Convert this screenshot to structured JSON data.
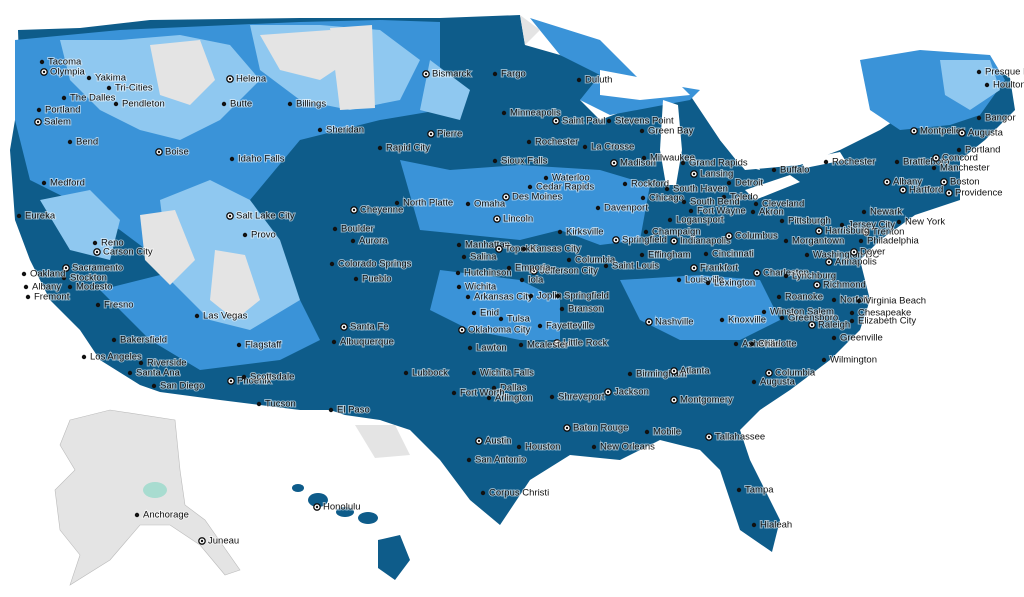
{
  "cities": [
    {
      "name": "Tacoma",
      "capital": false
    },
    {
      "name": "Olympia",
      "capital": true
    },
    {
      "name": "Yakima",
      "capital": false
    },
    {
      "name": "Tri-Cities",
      "capital": false
    },
    {
      "name": "Helena",
      "capital": true
    },
    {
      "name": "Presque Isle",
      "capital": false
    },
    {
      "name": "Houlton",
      "capital": false
    },
    {
      "name": "Bismarck",
      "capital": true
    },
    {
      "name": "Fargo",
      "capital": false
    },
    {
      "name": "Duluth",
      "capital": false
    },
    {
      "name": "The Dalles",
      "capital": false
    },
    {
      "name": "Pendleton",
      "capital": false
    },
    {
      "name": "Portland",
      "capital": false
    },
    {
      "name": "Salem",
      "capital": true
    },
    {
      "name": "Butte",
      "capital": false
    },
    {
      "name": "Billings",
      "capital": false
    },
    {
      "name": "Bangor",
      "capital": false
    },
    {
      "name": "Minneapolis",
      "capital": false
    },
    {
      "name": "Saint Paul",
      "capital": true
    },
    {
      "name": "Stevens Point",
      "capital": false
    },
    {
      "name": "Green Bay",
      "capital": false
    },
    {
      "name": "Sheridan",
      "capital": false
    },
    {
      "name": "Pierre",
      "capital": true
    },
    {
      "name": "Montpelier",
      "capital": true
    },
    {
      "name": "Augusta",
      "capital": true
    },
    {
      "name": "Rochester",
      "capital": false
    },
    {
      "name": "La Crosse",
      "capital": false
    },
    {
      "name": "Bend",
      "capital": false
    },
    {
      "name": "Rapid City",
      "capital": false
    },
    {
      "name": "Portland",
      "capital": false
    },
    {
      "name": "Boise",
      "capital": true
    },
    {
      "name": "Idaho Falls",
      "capital": false
    },
    {
      "name": "Sioux Falls",
      "capital": false
    },
    {
      "name": "Madison",
      "capital": true
    },
    {
      "name": "Milwaukee",
      "capital": false
    },
    {
      "name": "Grand Rapids",
      "capital": false
    },
    {
      "name": "Lansing",
      "capital": true
    },
    {
      "name": "Buffalo",
      "capital": false
    },
    {
      "name": "Rochester",
      "capital": false
    },
    {
      "name": "Brattleboro",
      "capital": false
    },
    {
      "name": "Concord",
      "capital": true
    },
    {
      "name": "Manchester",
      "capital": false
    },
    {
      "name": "Waterloo",
      "capital": false
    },
    {
      "name": "Rockford",
      "capital": false
    },
    {
      "name": "Detroit",
      "capital": false
    },
    {
      "name": "Medford",
      "capital": false
    },
    {
      "name": "Albany",
      "capital": true
    },
    {
      "name": "Boston",
      "capital": true
    },
    {
      "name": "Cedar Rapids",
      "capital": false
    },
    {
      "name": "South Haven",
      "capital": false
    },
    {
      "name": "Toledo",
      "capital": false
    },
    {
      "name": "Hartford",
      "capital": true
    },
    {
      "name": "Providence",
      "capital": true
    },
    {
      "name": "Des Moines",
      "capital": true
    },
    {
      "name": "Chicago",
      "capital": false
    },
    {
      "name": "Cheyenne",
      "capital": true
    },
    {
      "name": "North Platte",
      "capital": false
    },
    {
      "name": "Omaha",
      "capital": false
    },
    {
      "name": "Davenport",
      "capital": false
    },
    {
      "name": "South Bend",
      "capital": false
    },
    {
      "name": "Fort Wayne",
      "capital": false
    },
    {
      "name": "Cleveland",
      "capital": false
    },
    {
      "name": "Akron",
      "capital": false
    },
    {
      "name": "Newark",
      "capital": false
    },
    {
      "name": "New York",
      "capital": false
    },
    {
      "name": "Trenton",
      "capital": true
    },
    {
      "name": "Philadelphia",
      "capital": false
    },
    {
      "name": "Eureka",
      "capital": false
    },
    {
      "name": "Salt Lake City",
      "capital": true
    },
    {
      "name": "Lincoln",
      "capital": true
    },
    {
      "name": "Logansport",
      "capital": false
    },
    {
      "name": "Pittsburgh",
      "capital": false
    },
    {
      "name": "Jersey City",
      "capital": false
    },
    {
      "name": "Harrisburg",
      "capital": true
    },
    {
      "name": "Provo",
      "capital": false
    },
    {
      "name": "Boulder",
      "capital": false
    },
    {
      "name": "Aurora",
      "capital": false
    },
    {
      "name": "Manhattan",
      "capital": false
    },
    {
      "name": "Topeka",
      "capital": true
    },
    {
      "name": "Kansas City",
      "capital": false
    },
    {
      "name": "Kirksville",
      "capital": false
    },
    {
      "name": "Springfield",
      "capital": true
    },
    {
      "name": "Champaign",
      "capital": false
    },
    {
      "name": "Indianapolis",
      "capital": true
    },
    {
      "name": "Columbus",
      "capital": true
    },
    {
      "name": "Morgantown",
      "capital": false
    },
    {
      "name": "Reno",
      "capital": false
    },
    {
      "name": "Carson City",
      "capital": true
    },
    {
      "name": "Sacramento",
      "capital": true
    },
    {
      "name": "Stockton",
      "capital": false
    },
    {
      "name": "Oakland",
      "capital": false
    },
    {
      "name": "Modesto",
      "capital": false
    },
    {
      "name": "Albany",
      "capital": false
    },
    {
      "name": "Fremont",
      "capital": false
    },
    {
      "name": "Salina",
      "capital": false
    },
    {
      "name": "Columbia",
      "capital": false
    },
    {
      "name": "Jefferson City",
      "capital": true
    },
    {
      "name": "Saint Louis",
      "capital": false
    },
    {
      "name": "Effingham",
      "capital": false
    },
    {
      "name": "Frankfort",
      "capital": true
    },
    {
      "name": "Cincinnati",
      "capital": false
    },
    {
      "name": "Charleston",
      "capital": true
    },
    {
      "name": "Washington DC",
      "capital": false
    },
    {
      "name": "Annapolis",
      "capital": true
    },
    {
      "name": "Dover",
      "capital": true
    },
    {
      "name": "Colorado Springs",
      "capital": false
    },
    {
      "name": "Pueblo",
      "capital": false
    },
    {
      "name": "Hutchinson",
      "capital": false
    },
    {
      "name": "Emporia",
      "capital": false
    },
    {
      "name": "Iola",
      "capital": false
    },
    {
      "name": "Wichita",
      "capital": false
    },
    {
      "name": "Louisville",
      "capital": false
    },
    {
      "name": "Lexington",
      "capital": false
    },
    {
      "name": "Lynchburg",
      "capital": false
    },
    {
      "name": "Richmond",
      "capital": true
    },
    {
      "name": "Fresno",
      "capital": false
    },
    {
      "name": "Arkansas City",
      "capital": false
    },
    {
      "name": "Joplin",
      "capital": false
    },
    {
      "name": "Springfield",
      "capital": false
    },
    {
      "name": "Branson",
      "capital": false
    },
    {
      "name": "Norfolk",
      "capital": false
    },
    {
      "name": "Virginia Beach",
      "capital": false
    },
    {
      "name": "Chesapeake",
      "capital": false
    },
    {
      "name": "Roanoke",
      "capital": false
    },
    {
      "name": "Las Vegas",
      "capital": false
    },
    {
      "name": "Enid",
      "capital": false
    },
    {
      "name": "Tulsa",
      "capital": false
    },
    {
      "name": "Fayetteville",
      "capital": false
    },
    {
      "name": "Nashville",
      "capital": true
    },
    {
      "name": "Knoxville",
      "capital": false
    },
    {
      "name": "Winston Salem",
      "capital": false
    },
    {
      "name": "Greensboro",
      "capital": false
    },
    {
      "name": "Raleigh",
      "capital": true
    },
    {
      "name": "Elizabeth City",
      "capital": false
    },
    {
      "name": "Santa Fe",
      "capital": true
    },
    {
      "name": "Oklahoma City",
      "capital": true
    },
    {
      "name": "Bakersfield",
      "capital": false
    },
    {
      "name": "Albuquerque",
      "capital": false
    },
    {
      "name": "Lawton",
      "capital": false
    },
    {
      "name": "Little Rock",
      "capital": true
    },
    {
      "name": "Asheville",
      "capital": false
    },
    {
      "name": "Charlotte",
      "capital": false
    },
    {
      "name": "Greenville",
      "capital": false
    },
    {
      "name": "Flagstaff",
      "capital": false
    },
    {
      "name": "Los Angeles",
      "capital": false
    },
    {
      "name": "Riverside",
      "capital": false
    },
    {
      "name": "Santa Ana",
      "capital": false
    },
    {
      "name": "Phoenix",
      "capital": true
    },
    {
      "name": "Scottsdale",
      "capital": false
    },
    {
      "name": "Mcalester",
      "capital": false
    },
    {
      "name": "Lubbock",
      "capital": false
    },
    {
      "name": "Wichita Falls",
      "capital": false
    },
    {
      "name": "Wilmington",
      "capital": false
    },
    {
      "name": "Columbia",
      "capital": true
    },
    {
      "name": "Birmingham",
      "capital": false
    },
    {
      "name": "Atlanta",
      "capital": true
    },
    {
      "name": "San Diego",
      "capital": false
    },
    {
      "name": "Dallas",
      "capital": false
    },
    {
      "name": "Fort Worth",
      "capital": false
    },
    {
      "name": "Arlington",
      "capital": false
    },
    {
      "name": "Shreveport",
      "capital": false
    },
    {
      "name": "Jackson",
      "capital": true
    },
    {
      "name": "Montgomery",
      "capital": true
    },
    {
      "name": "Augusta",
      "capital": false
    },
    {
      "name": "Tucson",
      "capital": false
    },
    {
      "name": "El Paso",
      "capital": false
    },
    {
      "name": "Austin",
      "capital": true
    },
    {
      "name": "Houston",
      "capital": false
    },
    {
      "name": "Baton Rouge",
      "capital": true
    },
    {
      "name": "Mobile",
      "capital": false
    },
    {
      "name": "Tallahassee",
      "capital": true
    },
    {
      "name": "New Orleans",
      "capital": false
    },
    {
      "name": "San Antonio",
      "capital": false
    },
    {
      "name": "Corpus Christi",
      "capital": false
    },
    {
      "name": "Tampa",
      "capital": false
    },
    {
      "name": "Hialeah",
      "capital": false
    },
    {
      "name": "Honolulu",
      "capital": true
    },
    {
      "name": "Anchorage",
      "capital": false
    },
    {
      "name": "Juneau",
      "capital": true
    }
  ]
}
